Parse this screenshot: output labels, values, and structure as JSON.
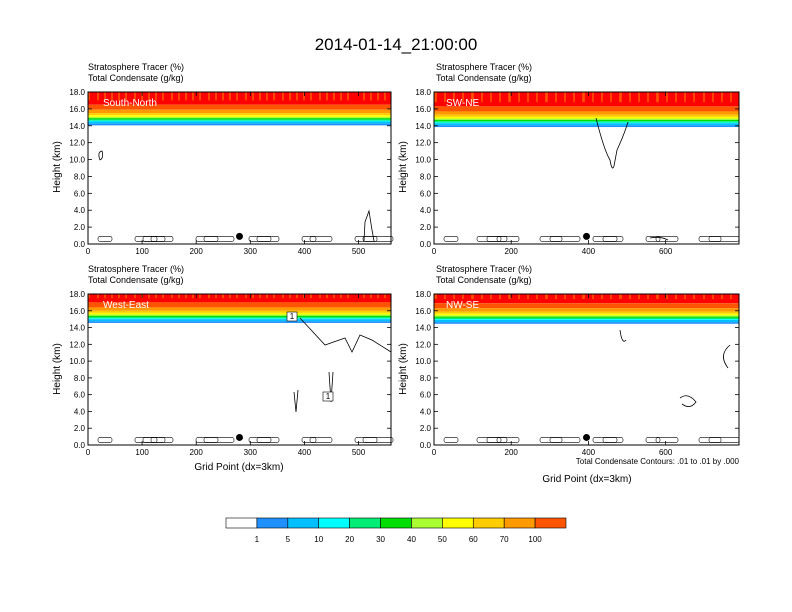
{
  "title": "2014-01-14_21:00:00",
  "subtitle_line1": "Stratosphere Tracer   (%)",
  "subtitle_line2": "Total Condensate   (g/kg)",
  "ylabel": "Height (km)",
  "xlabel": "Grid Point (dx=3km)",
  "contour_note": "Total Condensate Contours: .01 to .01 by .000",
  "colorbar": {
    "colors": [
      "#ffffff",
      "#1e90ff",
      "#00bfff",
      "#00ffff",
      "#00ee76",
      "#00dd00",
      "#aaff33",
      "#ffff00",
      "#ffcc00",
      "#ff9900",
      "#ff5500",
      "#ff0000"
    ],
    "labels": [
      "1",
      "5",
      "10",
      "20",
      "30",
      "40",
      "50",
      "60",
      "70",
      "100"
    ]
  },
  "chart_data": [
    {
      "type": "heatmap",
      "panel_label": "South-North",
      "xlim": [
        0,
        560
      ],
      "ylim": [
        0.0,
        18.0
      ],
      "xticks": [
        "0",
        "100",
        "200",
        "300",
        "400",
        "500"
      ],
      "yticks": [
        "0.0",
        "2.0",
        "4.0",
        "6.0",
        "8.0",
        "10.0",
        "12.0",
        "14.0",
        "16.0",
        "18.0"
      ],
      "marker": {
        "x": 280,
        "y": 0.9
      },
      "tropopause_km": 14.5
    },
    {
      "type": "heatmap",
      "panel_label": "SW-NE",
      "xlim": [
        0,
        790
      ],
      "ylim": [
        0.0,
        18.0
      ],
      "xticks": [
        "0",
        "200",
        "400",
        "600"
      ],
      "yticks": [
        "0.0",
        "2.0",
        "4.0",
        "6.0",
        "8.0",
        "10.0",
        "12.0",
        "14.0",
        "16.0",
        "18.0"
      ],
      "marker": {
        "x": 395,
        "y": 0.9
      },
      "tropopause_km": 14.3
    },
    {
      "type": "heatmap",
      "panel_label": "West-East",
      "xlim": [
        0,
        560
      ],
      "ylim": [
        0.0,
        18.0
      ],
      "xticks": [
        "0",
        "100",
        "200",
        "300",
        "400",
        "500"
      ],
      "yticks": [
        "0.0",
        "2.0",
        "4.0",
        "6.0",
        "8.0",
        "10.0",
        "12.0",
        "14.0",
        "16.0",
        "18.0"
      ],
      "marker": {
        "x": 280,
        "y": 0.9
      },
      "tropopause_km": 15.0,
      "contour_box_labels": [
        "1",
        "1"
      ]
    },
    {
      "type": "heatmap",
      "panel_label": "NW-SE",
      "xlim": [
        0,
        790
      ],
      "ylim": [
        0.0,
        18.0
      ],
      "xticks": [
        "0",
        "200",
        "400",
        "600"
      ],
      "yticks": [
        "0.0",
        "2.0",
        "4.0",
        "6.0",
        "8.0",
        "10.0",
        "12.0",
        "14.0",
        "16.0",
        "18.0"
      ],
      "marker": {
        "x": 395,
        "y": 0.9
      },
      "tropopause_km": 14.9
    }
  ]
}
